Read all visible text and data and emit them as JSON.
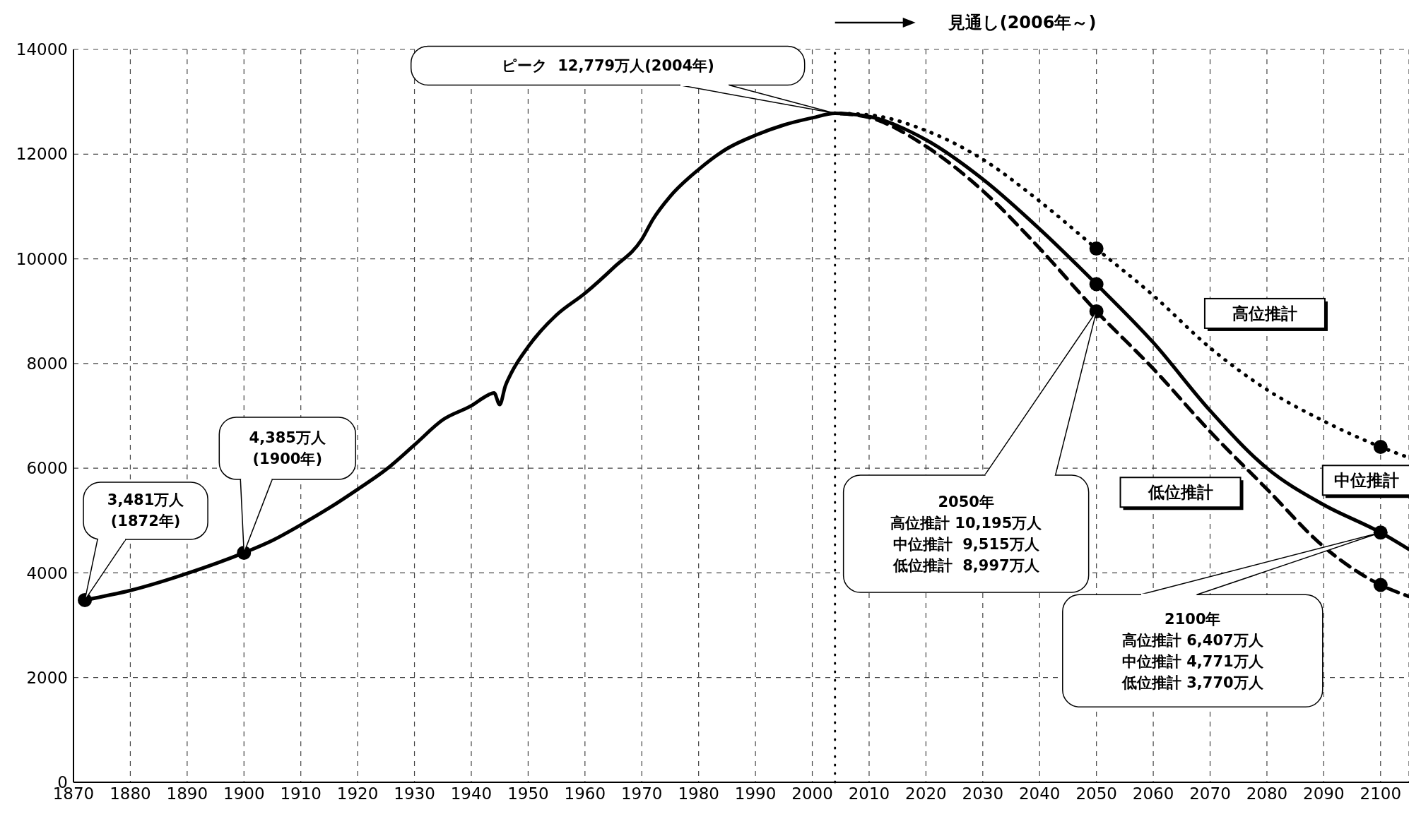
{
  "chart_data": {
    "type": "line",
    "xlim": [
      1870,
      2105
    ],
    "xticks": [
      1870,
      1880,
      1890,
      1900,
      1910,
      1920,
      1930,
      1940,
      1950,
      1960,
      1970,
      1980,
      1990,
      2000,
      2010,
      2020,
      2030,
      2040,
      2050,
      2060,
      2070,
      2080,
      2090,
      2100
    ],
    "ylim": [
      0,
      14000
    ],
    "yticks": [
      0,
      2000,
      4000,
      6000,
      8000,
      10000,
      12000,
      14000
    ],
    "grid": true,
    "marker": "none",
    "series": [
      {
        "color": "#000000",
        "line_style": "solid",
        "x": [
          1872,
          1880,
          1890,
          1900,
          1905,
          1910,
          1915,
          1920,
          1925,
          1930,
          1935,
          1940,
          1943,
          1944,
          1945,
          1946,
          1947,
          1950,
          1955,
          1960,
          1965,
          1970,
          1972,
          1975,
          1980,
          1985,
          1990,
          1995,
          2000,
          2004,
          2005
        ],
        "values": [
          3481,
          3665,
          3990,
          4385,
          4620,
          4918,
          5240,
          5596,
          5974,
          6445,
          6925,
          7193,
          7400,
          7440,
          7215,
          7575,
          7810,
          8320,
          8928,
          9342,
          9828,
          10372,
          10760,
          11194,
          11706,
          12105,
          12361,
          12557,
          12693,
          12779,
          12777
        ]
      },
      {
        "name": "高位推計",
        "color": "#000000",
        "line_style": "dotted",
        "x": [
          2005,
          2010,
          2020,
          2030,
          2040,
          2050,
          2060,
          2070,
          2080,
          2090,
          2100,
          2105
        ],
        "values": [
          12777,
          12750,
          12450,
          11900,
          11100,
          10195,
          9300,
          8300,
          7500,
          6900,
          6407,
          6200
        ]
      },
      {
        "name": "中位推計",
        "color": "#000000",
        "line_style": "solid",
        "x": [
          2005,
          2010,
          2020,
          2030,
          2040,
          2050,
          2060,
          2070,
          2080,
          2090,
          2100,
          2105
        ],
        "values": [
          12777,
          12718,
          12274,
          11522,
          10570,
          9515,
          8400,
          7100,
          6000,
          5300,
          4771,
          4450
        ]
      },
      {
        "name": "低位推計",
        "color": "#000000",
        "line_style": "dashed",
        "x": [
          2005,
          2010,
          2020,
          2030,
          2040,
          2050,
          2060,
          2070,
          2080,
          2090,
          2100,
          2105
        ],
        "values": [
          12777,
          12700,
          12150,
          11300,
          10200,
          8997,
          7900,
          6700,
          5600,
          4500,
          3770,
          3550
        ]
      },
      {
        "type": "scatter",
        "color": "#000000",
        "marker": "circle",
        "x": [
          1872,
          1900,
          2050,
          2050,
          2050,
          2100,
          2100,
          2100
        ],
        "values": [
          3481,
          4385,
          10195,
          9515,
          8997,
          6407,
          4771,
          3770
        ]
      }
    ],
    "ref_lines": [
      {
        "axis": "x",
        "value": 2004,
        "line_style": "dotted",
        "color": "#000000"
      }
    ],
    "annotations": [
      "3,481万人\n(1872年)",
      {
        "text": "4,385万人\n(1900年)",
        "x": 1900,
        "y": 4385
      },
      {
        "text": "ピーク  12,779万人(2004年)",
        "x": 2004,
        "y": 12779
      },
      "2050年",
      "高位推計 10,195万人",
      "中位推計  9,515万人",
      "低位推計  8,997万人",
      {
        "text": "2100年",
        "x": 2100,
        "y": 4771
      },
      "高位推計 6,407万人",
      "中位推計 4,771万人",
      "低位推計 3,770万人",
      "見通し(2006年～)"
    ]
  }
}
